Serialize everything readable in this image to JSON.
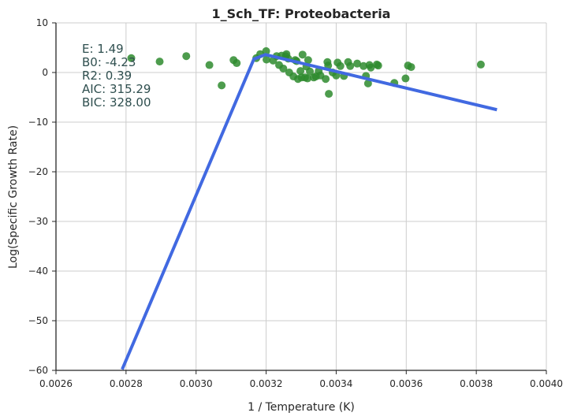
{
  "chart_data": {
    "type": "scatter",
    "title": "1_Sch_TF: Proteobacteria",
    "xlabel": "1 / Temperature (K)",
    "ylabel": "Log(Specific Growth Rate)",
    "xlim": [
      0.0026,
      0.004
    ],
    "ylim": [
      -60,
      10
    ],
    "x_ticks": [
      0.0026,
      0.0028,
      0.003,
      0.0032,
      0.0034,
      0.0036,
      0.0038,
      0.004
    ],
    "x_tick_labels": [
      "0.0026",
      "0.0028",
      "0.0030",
      "0.0032",
      "0.0034",
      "0.0036",
      "0.0038",
      "0.0040"
    ],
    "y_ticks": [
      10,
      0,
      -10,
      -20,
      -30,
      -40,
      -50,
      -60
    ],
    "y_tick_labels": [
      "10",
      "0",
      "−10",
      "−20",
      "−30",
      "−40",
      "−50",
      "−60"
    ],
    "grid": true,
    "stats": [
      {
        "label": "E:",
        "value": "1.49"
      },
      {
        "label": "B0:",
        "value": "-4.23"
      },
      {
        "label": "R2:",
        "value": "0.39"
      },
      {
        "label": "AIC:",
        "value": "315.29"
      },
      {
        "label": "BIC:",
        "value": "328.00"
      }
    ],
    "series": [
      {
        "kind": "scatter",
        "color": "#2e8b2e",
        "points": [
          [
            0.002815,
            2.9
          ],
          [
            0.002896,
            2.2
          ],
          [
            0.002972,
            3.3
          ],
          [
            0.003038,
            1.5
          ],
          [
            0.003073,
            -2.6
          ],
          [
            0.003107,
            2.5
          ],
          [
            0.003116,
            1.9
          ],
          [
            0.003172,
            2.9
          ],
          [
            0.003183,
            3.7
          ],
          [
            0.0032,
            4.3
          ],
          [
            0.003201,
            2.6
          ],
          [
            0.00322,
            2.4
          ],
          [
            0.00323,
            3.3
          ],
          [
            0.003237,
            1.5
          ],
          [
            0.003244,
            3.4
          ],
          [
            0.003249,
            0.8
          ],
          [
            0.003256,
            3.3
          ],
          [
            0.003258,
            3.7
          ],
          [
            0.003263,
            2.8
          ],
          [
            0.003266,
            0.0
          ],
          [
            0.003278,
            -0.8
          ],
          [
            0.003283,
            2.5
          ],
          [
            0.003287,
            2.3
          ],
          [
            0.003291,
            -1.3
          ],
          [
            0.003298,
            0.3
          ],
          [
            0.003301,
            -1.0
          ],
          [
            0.003304,
            3.6
          ],
          [
            0.003311,
            -1.0
          ],
          [
            0.003315,
            1.2
          ],
          [
            0.003318,
            -1.2
          ],
          [
            0.00332,
            2.5
          ],
          [
            0.003325,
            0.2
          ],
          [
            0.003336,
            -1.0
          ],
          [
            0.003342,
            -0.8
          ],
          [
            0.00335,
            0.3
          ],
          [
            0.003355,
            -0.6
          ],
          [
            0.00337,
            -1.3
          ],
          [
            0.003375,
            2.1
          ],
          [
            0.003377,
            1.4
          ],
          [
            0.003379,
            -4.3
          ],
          [
            0.00339,
            0.0
          ],
          [
            0.0034,
            -0.6
          ],
          [
            0.003404,
            2.0
          ],
          [
            0.003412,
            1.3
          ],
          [
            0.003422,
            -0.7
          ],
          [
            0.003434,
            2.1
          ],
          [
            0.00344,
            1.3
          ],
          [
            0.00346,
            1.8
          ],
          [
            0.003478,
            1.3
          ],
          [
            0.003485,
            -0.7
          ],
          [
            0.003491,
            -2.2
          ],
          [
            0.003495,
            1.5
          ],
          [
            0.003499,
            1.0
          ],
          [
            0.003516,
            1.6
          ],
          [
            0.00352,
            1.4
          ],
          [
            0.003566,
            -2.1
          ],
          [
            0.003598,
            -1.2
          ],
          [
            0.003605,
            1.4
          ],
          [
            0.003614,
            1.1
          ],
          [
            0.003813,
            1.6
          ]
        ]
      },
      {
        "kind": "line",
        "color": "#4169e1",
        "points": [
          [
            0.002789,
            -59.8
          ],
          [
            0.003165,
            2.7
          ],
          [
            0.003198,
            3.6
          ],
          [
            0.003859,
            -7.5
          ]
        ]
      }
    ]
  }
}
